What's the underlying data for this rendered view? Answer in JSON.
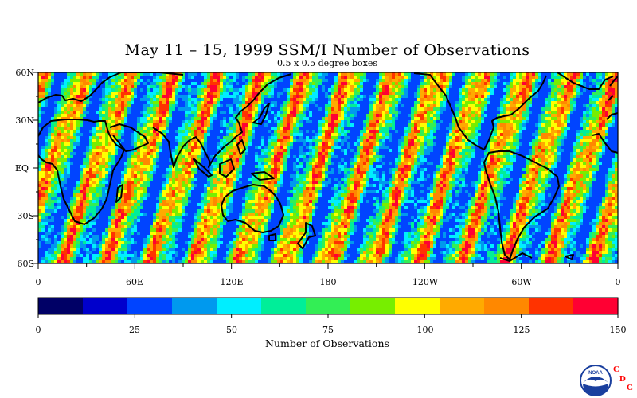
{
  "title": "May 11 – 15, 1999 SSM/I Number of Observations",
  "subtitle": "0.5 x 0.5 degree boxes",
  "map": {
    "lat_labels": [
      "60N",
      "30N",
      "EQ",
      "30S",
      "60S"
    ],
    "lon_labels": [
      "0",
      "60E",
      "120E",
      "180",
      "120W",
      "60W",
      "0"
    ]
  },
  "colorbar": {
    "title": "Number of Observations",
    "ticks": [
      "0",
      "25",
      "50",
      "75",
      "100",
      "125",
      "150"
    ],
    "colors": [
      "#000066",
      "#0000cc",
      "#0044ff",
      "#0099ee",
      "#00eeff",
      "#00ee99",
      "#33ee55",
      "#77ee00",
      "#ffff00",
      "#ffaa00",
      "#ff8800",
      "#ff3300",
      "#ff0033"
    ]
  },
  "logo": {
    "text": "NOAA",
    "letters": [
      "C",
      "D",
      "C"
    ],
    "letter_color": "#ff0000",
    "circle_color": "#1a3f9e"
  }
}
